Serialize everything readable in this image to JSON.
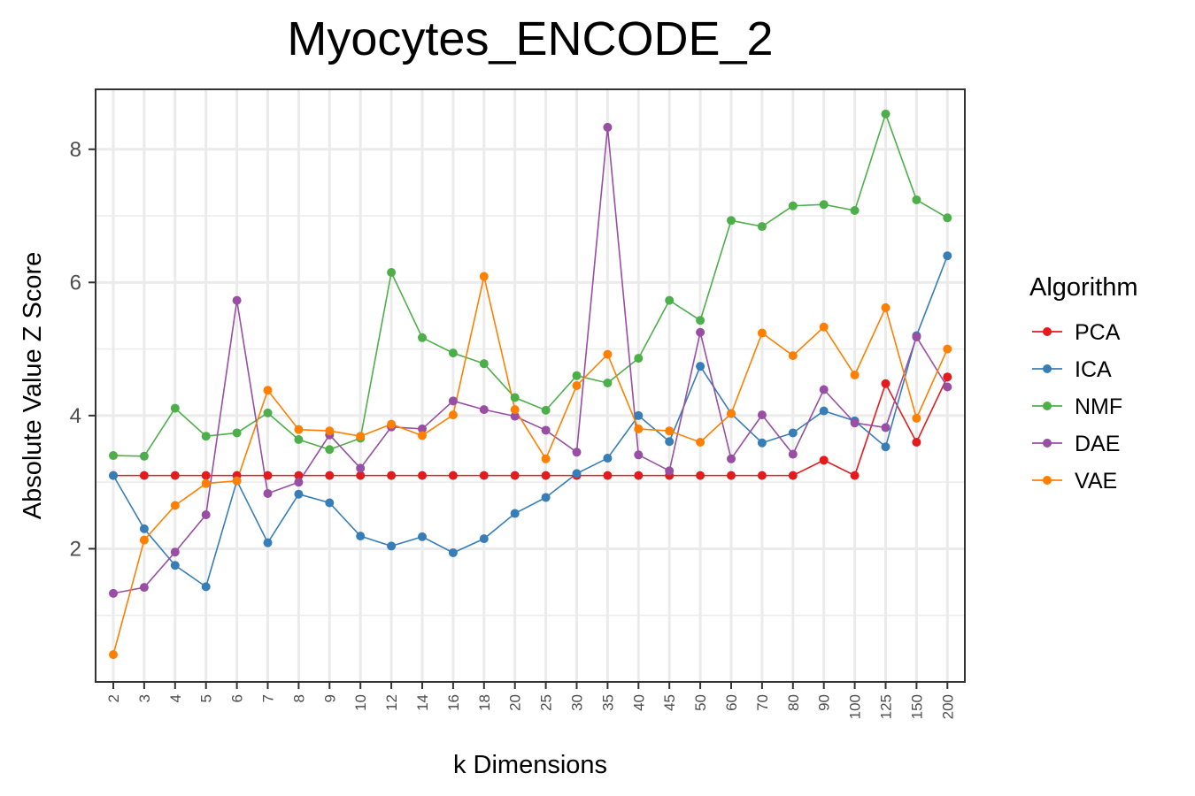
{
  "chart_data": {
    "type": "line",
    "title": "Myocytes_ENCODE_2",
    "xlabel": "k Dimensions",
    "ylabel": "Absolute Value Z Score",
    "ylim": [
      0,
      8.9
    ],
    "yticks": [
      2,
      4,
      6,
      8
    ],
    "grid": true,
    "legend": {
      "title": "Algorithm",
      "position": "right"
    },
    "categories": [
      "2",
      "3",
      "4",
      "5",
      "6",
      "7",
      "8",
      "9",
      "10",
      "12",
      "14",
      "16",
      "18",
      "20",
      "25",
      "30",
      "35",
      "40",
      "45",
      "50",
      "60",
      "70",
      "80",
      "90",
      "100",
      "125",
      "150",
      "200"
    ],
    "series": [
      {
        "name": "PCA",
        "color": "#e41a1c",
        "values": [
          3.1,
          3.1,
          3.1,
          3.1,
          3.1,
          3.1,
          3.1,
          3.1,
          3.1,
          3.1,
          3.1,
          3.1,
          3.1,
          3.1,
          3.1,
          3.1,
          3.1,
          3.1,
          3.1,
          3.1,
          3.1,
          3.1,
          3.1,
          3.33,
          3.1,
          4.48,
          3.6,
          4.58
        ]
      },
      {
        "name": "ICA",
        "color": "#377eb8",
        "values": [
          3.1,
          2.3,
          1.75,
          1.43,
          3.02,
          2.09,
          2.82,
          2.69,
          2.19,
          2.04,
          2.18,
          1.94,
          2.15,
          2.53,
          2.77,
          3.13,
          3.36,
          4.0,
          3.61,
          4.74,
          4.03,
          3.59,
          3.74,
          4.07,
          3.92,
          3.53,
          5.2,
          6.4
        ]
      },
      {
        "name": "NMF",
        "color": "#4daf4a",
        "values": [
          3.4,
          3.39,
          4.11,
          3.69,
          3.74,
          4.04,
          3.64,
          3.49,
          3.66,
          6.15,
          5.17,
          4.94,
          4.78,
          4.27,
          4.08,
          4.6,
          4.49,
          4.86,
          5.73,
          5.43,
          6.93,
          6.84,
          7.15,
          7.17,
          7.08,
          8.53,
          7.24,
          6.97
        ]
      },
      {
        "name": "DAE",
        "color": "#984ea3",
        "values": [
          1.33,
          1.42,
          1.95,
          2.51,
          5.73,
          2.83,
          3.0,
          3.71,
          3.21,
          3.83,
          3.8,
          4.22,
          4.09,
          3.99,
          3.78,
          3.45,
          8.33,
          3.41,
          3.17,
          5.25,
          3.35,
          4.01,
          3.42,
          4.39,
          3.89,
          3.82,
          5.18,
          4.43
        ]
      },
      {
        "name": "VAE",
        "color": "#ff7f00",
        "values": [
          0.41,
          2.13,
          2.65,
          2.98,
          3.02,
          4.38,
          3.79,
          3.77,
          3.69,
          3.87,
          3.7,
          4.01,
          6.09,
          4.09,
          3.35,
          4.45,
          4.92,
          3.8,
          3.77,
          3.6,
          4.03,
          5.24,
          4.9,
          5.33,
          4.61,
          5.62,
          3.96,
          5.0
        ]
      }
    ]
  }
}
